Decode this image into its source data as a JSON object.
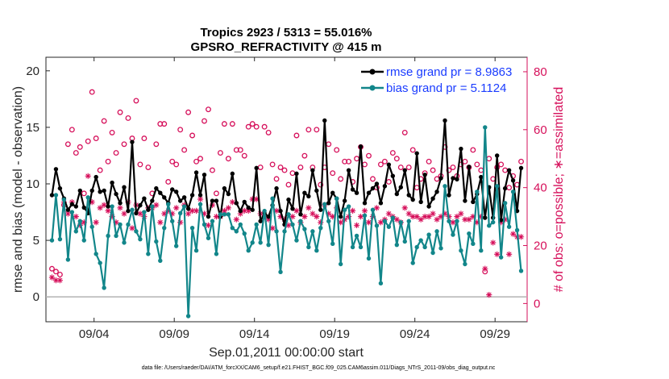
{
  "chart_data": {
    "type": "line",
    "title": "Tropics 2923 / 5313 = 55.016%",
    "subtitle": "GPSRO_REFRACTIVITY @ 415 m",
    "xlabel": "Sep.01,2011 00:00:00 start",
    "ylabel": "rmse and bias (model - observation)",
    "ylabel_right": "# of obs: o=possible; ∗=assimilated",
    "xlim": [
      1.0,
      31.0
    ],
    "ylim": [
      -2.2,
      21.2
    ],
    "ylim_right": [
      -6.3,
      85.0
    ],
    "xticks": [
      4,
      9,
      14,
      19,
      24,
      29
    ],
    "xticklabels": [
      "09/04",
      "09/09",
      "09/14",
      "09/19",
      "09/24",
      "09/29"
    ],
    "yticks": [
      0,
      5,
      10,
      15,
      20
    ],
    "yticks_right": [
      0,
      20,
      40,
      60,
      80
    ],
    "legend_location": "top-right",
    "x": [
      1.375,
      1.625,
      1.875,
      2.125,
      2.375,
      2.625,
      2.875,
      3.125,
      3.375,
      3.625,
      3.875,
      4.125,
      4.375,
      4.625,
      4.875,
      5.125,
      5.375,
      5.625,
      5.875,
      6.125,
      6.375,
      6.625,
      6.875,
      7.125,
      7.375,
      7.625,
      7.875,
      8.125,
      8.375,
      8.625,
      8.875,
      9.125,
      9.375,
      9.625,
      9.875,
      10.125,
      10.375,
      10.625,
      10.875,
      11.125,
      11.375,
      11.625,
      11.875,
      12.125,
      12.375,
      12.625,
      12.875,
      13.125,
      13.375,
      13.625,
      13.875,
      14.125,
      14.375,
      14.625,
      14.875,
      15.125,
      15.375,
      15.625,
      15.875,
      16.125,
      16.375,
      16.625,
      16.875,
      17.125,
      17.375,
      17.625,
      17.875,
      18.125,
      18.375,
      18.625,
      18.875,
      19.125,
      19.375,
      19.625,
      19.875,
      20.125,
      20.375,
      20.625,
      20.875,
      21.125,
      21.375,
      21.625,
      21.875,
      22.125,
      22.375,
      22.625,
      22.875,
      23.125,
      23.375,
      23.625,
      23.875,
      24.125,
      24.375,
      24.625,
      24.875,
      25.125,
      25.375,
      25.625,
      25.875,
      26.125,
      26.375,
      26.625,
      26.875,
      27.125,
      27.375,
      27.625,
      27.875,
      28.125,
      28.375,
      28.625,
      28.875,
      29.125,
      29.375,
      29.625,
      29.875,
      30.125,
      30.375,
      30.625
    ],
    "series": [
      {
        "name": "rmse grand pr = 8.9863",
        "axis": "left",
        "color": "#000000",
        "values": [
          9.0,
          11.3,
          9.6,
          8.7,
          7.7,
          8.2,
          8.0,
          9.4,
          7.9,
          7.4,
          9.4,
          10.6,
          9.3,
          9.4,
          8.0,
          10.1,
          9.1,
          8.3,
          9.7,
          7.6,
          13.7,
          7.4,
          8.1,
          8.7,
          7.7,
          8.5,
          9.6,
          9.2,
          8.8,
          8.3,
          9.5,
          9.3,
          8.5,
          8.8,
          7.8,
          9.0,
          11.0,
          9.0,
          10.8,
          7.1,
          8.5,
          8.5,
          7.1,
          9.6,
          9.1,
          10.9,
          8.3,
          7.6,
          8.4,
          7.9,
          7.7,
          11.4,
          6.7,
          7.4,
          7.1,
          8.1,
          9.6,
          7.6,
          6.4,
          8.6,
          7.8,
          10.9,
          7.3,
          9.2,
          8.9,
          11.2,
          9.4,
          7.7,
          15.6,
          8.3,
          9.2,
          8.7,
          7.1,
          8.5,
          11.2,
          9.5,
          9.2,
          13.3,
          8.3,
          9.2,
          9.6,
          10.0,
          8.3,
          9.8,
          11.7,
          10.7,
          9.1,
          9.7,
          11.2,
          9.0,
          8.6,
          12.7,
          8.4,
          10.8,
          8.0,
          8.7,
          9.3,
          10.5,
          15.6,
          9.0,
          10.5,
          10.4,
          13.1,
          8.5,
          11.5,
          8.4,
          9.1,
          10.6,
          7.0,
          9.7,
          7.0,
          12.5,
          6.8,
          9.6,
          11.2,
          10.3,
          7.6,
          11.4
        ]
      },
      {
        "name": "bias grand pr = 5.1124",
        "axis": "left",
        "color": "#12868a",
        "values": [
          5.0,
          9.0,
          5.1,
          8.6,
          3.3,
          7.5,
          5.8,
          6.7,
          5.0,
          8.8,
          6.2,
          3.8,
          3.0,
          0.8,
          5.4,
          8.0,
          5.4,
          6.4,
          4.8,
          6.4,
          7.7,
          5.8,
          5.1,
          7.5,
          3.8,
          8.0,
          4.9,
          3.2,
          6.1,
          8.2,
          6.7,
          4.5,
          7.4,
          8.0,
          -1.7,
          6.1,
          4.1,
          8.2,
          6.4,
          5.2,
          6.7,
          3.8,
          7.3,
          7.3,
          7.3,
          6.1,
          5.8,
          6.4,
          5.6,
          4.1,
          4.8,
          6.4,
          4.8,
          7.6,
          4.6,
          8.7,
          5.8,
          2.2,
          5.8,
          7.3,
          6.4,
          5.0,
          6.7,
          6.0,
          4.4,
          5.8,
          4.1,
          6.1,
          8.2,
          6.7,
          4.7,
          8.7,
          2.9,
          7.7,
          8.0,
          4.4,
          5.4,
          4.4,
          7.2,
          3.4,
          7.7,
          6.3,
          1.2,
          6.7,
          6.2,
          7.0,
          4.6,
          6.6,
          4.9,
          6.7,
          3.0,
          4.4,
          5.0,
          4.4,
          5.5,
          3.9,
          5.8,
          4.3,
          9.8,
          6.7,
          5.5,
          6.7,
          4.1,
          2.9,
          5.6,
          4.7,
          9.3,
          4.1,
          15.0,
          6.3,
          6.6,
          9.8,
          3.5,
          8.3,
          6.2,
          9.3,
          5.9,
          2.3
        ]
      },
      {
        "name": "possible",
        "axis": "right",
        "marker": "circle",
        "color": "#d6105b",
        "values": [
          12,
          11,
          10,
          34,
          55,
          60,
          52,
          54,
          38,
          56,
          73,
          57,
          46,
          63,
          49,
          59,
          52,
          66,
          55,
          64,
          57,
          70,
          48,
          57,
          47,
          38,
          55,
          62,
          62,
          42,
          49,
          48,
          60,
          53,
          66,
          58,
          49,
          50,
          63,
          67,
          46,
          38,
          52,
          62,
          50,
          62,
          53,
          53,
          51,
          61,
          62,
          61,
          47,
          61,
          59,
          48,
          43,
          47,
          46,
          41,
          45,
          58,
          47,
          51,
          60,
          47,
          60,
          41,
          47,
          55,
          45,
          53,
          43,
          49,
          49,
          42,
          50,
          54,
          48,
          51,
          43,
          40,
          48,
          49,
          42,
          52,
          50,
          47,
          59,
          47,
          53,
          40,
          43,
          45,
          49,
          46,
          43,
          44,
          54,
          46,
          47,
          44,
          48,
          49,
          47,
          53,
          48,
          46,
          11,
          50,
          43,
          47,
          48,
          46,
          40,
          44,
          41,
          49
        ]
      },
      {
        "name": "assimilated",
        "axis": "right",
        "marker": "asterisk",
        "color": "#d6105b",
        "values": [
          9,
          8,
          8,
          35,
          31,
          35,
          30,
          27,
          28,
          44,
          35,
          28,
          33,
          34,
          32,
          30,
          28,
          33,
          31,
          35,
          26,
          34,
          31,
          30,
          33,
          33,
          34,
          28,
          31,
          32,
          31,
          33,
          28,
          34,
          31,
          32,
          32,
          36,
          31,
          27,
          34,
          30,
          30,
          32,
          33,
          35,
          29,
          31,
          32,
          32,
          36,
          36,
          31,
          30,
          29,
          26,
          32,
          30,
          29,
          27,
          30,
          32,
          28,
          30,
          33,
          31,
          30,
          28,
          34,
          31,
          30,
          33,
          28,
          29,
          30,
          32,
          27,
          30,
          32,
          28,
          30,
          33,
          28,
          29,
          31,
          30,
          29,
          28,
          33,
          31,
          30,
          30,
          29,
          30,
          30,
          31,
          29,
          30,
          31,
          30,
          28,
          30,
          31,
          29,
          29,
          30,
          28,
          30,
          12,
          3,
          21,
          17,
          28,
          29,
          17,
          24,
          23,
          23
        ]
      }
    ]
  },
  "footer": {
    "datafile": "data file: /Users/raeder/DAI/ATM_forcXX/CAM6_setup/f.e21.FHIST_BGC.f09_025.CAM6assim.011/Diags_NTrS_2011-09/obs_diag_output.nc"
  },
  "colors": {
    "rmse": "#000000",
    "bias": "#12868a",
    "obs": "#d6105b",
    "legend_text": "#1a3cff"
  }
}
